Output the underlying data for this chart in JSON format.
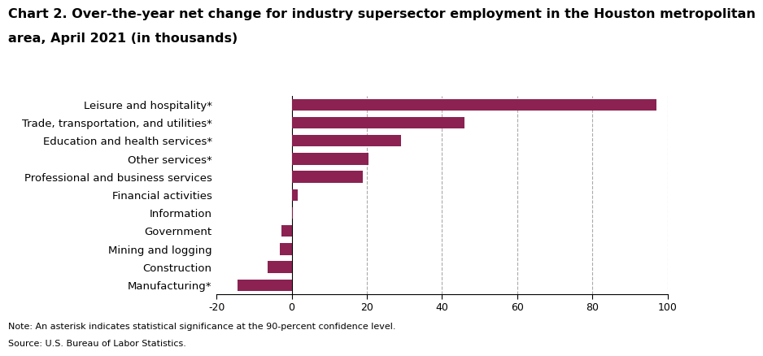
{
  "title_line1": "Chart 2. Over-the-year net change for industry supersector employment in the Houston metropolitan",
  "title_line2": "area, April 2021 (in thousands)",
  "categories": [
    "Manufacturing*",
    "Construction",
    "Mining and logging",
    "Government",
    "Information",
    "Financial activities",
    "Professional and business services",
    "Other services*",
    "Education and health services*",
    "Trade, transportation, and utilities*",
    "Leisure and hospitality*"
  ],
  "values": [
    -14.5,
    -6.5,
    -3.2,
    -2.8,
    0.3,
    1.5,
    19.0,
    20.5,
    29.0,
    46.0,
    97.0
  ],
  "bar_color": "#8B2252",
  "xlim": [
    -20,
    100
  ],
  "xticks": [
    -20,
    0,
    20,
    40,
    60,
    80,
    100
  ],
  "note": "Note: An asterisk indicates statistical significance at the 90-percent confidence level.",
  "source": "Source: U.S. Bureau of Labor Statistics.",
  "grid_color": "#aaaaaa",
  "background_color": "#ffffff",
  "title_fontsize": 11.5,
  "label_fontsize": 9.5,
  "tick_fontsize": 9,
  "note_fontsize": 8,
  "bar_height": 0.65
}
